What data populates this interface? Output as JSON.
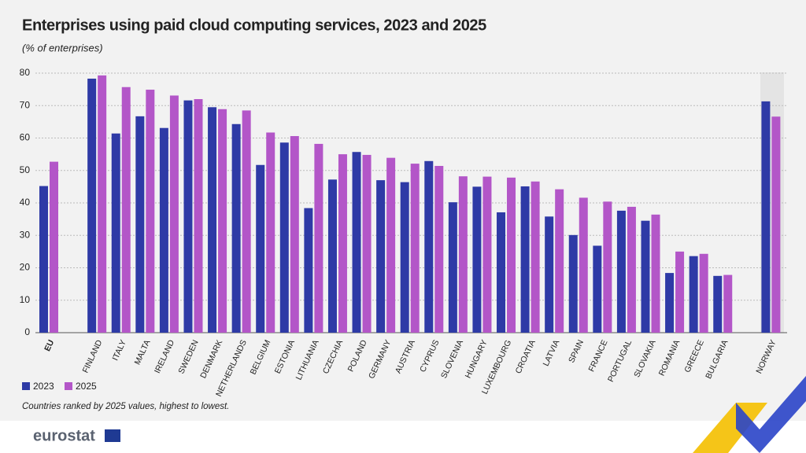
{
  "chart_data": {
    "type": "bar",
    "title": "Enterprises using paid cloud computing services, 2023 and 2025",
    "subtitle": "(% of enterprises)",
    "categories": [
      "EU",
      "FINLAND",
      "ITALY",
      "MALTA",
      "IRELAND",
      "SWEDEN",
      "DENMARK",
      "NETHERLANDS",
      "BELGIUM",
      "ESTONIA",
      "LITHUANIA",
      "CZECHIA",
      "POLAND",
      "GERMANY",
      "AUSTRIA",
      "CYPRUS",
      "SLOVENIA",
      "HUNGARY",
      "LUXEMBOURG",
      "CROATIA",
      "LATVIA",
      "SPAIN",
      "FRANCE",
      "PORTUGAL",
      "SLOVAKIA",
      "ROMANIA",
      "GREECE",
      "BULGARIA",
      "NORWAY"
    ],
    "series": [
      {
        "name": "2023",
        "color": "#2e3aa6",
        "values": [
          45.2,
          78.3,
          61.4,
          66.7,
          63.1,
          71.6,
          69.5,
          64.3,
          51.7,
          58.6,
          38.4,
          47.2,
          55.7,
          47.0,
          46.4,
          52.9,
          40.2,
          45.0,
          37.1,
          45.1,
          35.8,
          30.1,
          26.8,
          37.6,
          34.5,
          18.4,
          23.6,
          17.5,
          71.3
        ]
      },
      {
        "name": "2025",
        "color": "#b356c8",
        "values": [
          52.7,
          79.3,
          75.7,
          74.9,
          73.1,
          72.0,
          68.9,
          68.5,
          61.7,
          60.6,
          58.2,
          55.0,
          54.8,
          53.9,
          52.1,
          51.4,
          48.2,
          48.1,
          47.8,
          46.6,
          44.2,
          41.6,
          40.4,
          38.8,
          36.4,
          25.0,
          24.3,
          17.8,
          66.6
        ]
      }
    ],
    "ylim": [
      0,
      80
    ],
    "yticks": [
      0,
      10,
      20,
      30,
      40,
      50,
      60,
      70,
      80
    ],
    "grid": true,
    "note": "Countries ranked by 2025 values, highest to lowest.",
    "logo": "eurostat"
  }
}
